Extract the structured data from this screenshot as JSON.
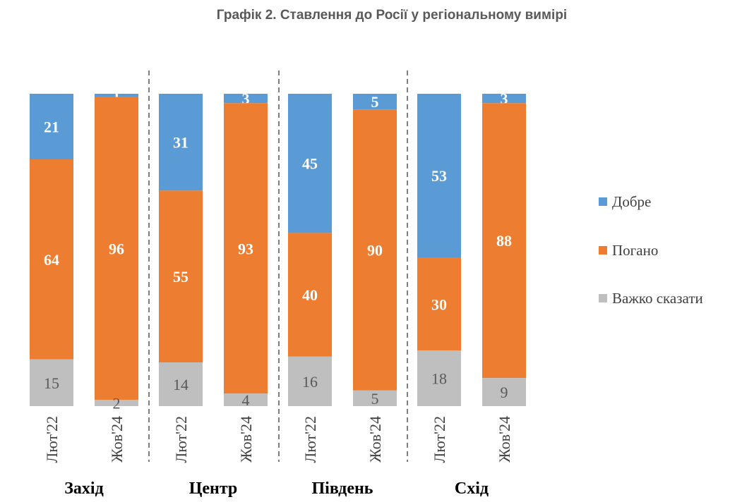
{
  "chart_data": {
    "type": "bar",
    "stacked": true,
    "percent": true,
    "title": "Графік 2. Ставлення до Росії у регіональному вимірі",
    "groups": [
      {
        "region": "Захід",
        "bars": [
          {
            "period": "Лют'22",
            "values": {
              "good": 21,
              "bad": 64,
              "hard": 15
            }
          },
          {
            "period": "Жов'24",
            "values": {
              "good": 1,
              "bad": 96,
              "hard": 2
            }
          }
        ]
      },
      {
        "region": "Центр",
        "bars": [
          {
            "period": "Лют'22",
            "values": {
              "good": 31,
              "bad": 55,
              "hard": 14
            }
          },
          {
            "period": "Жов'24",
            "values": {
              "good": 3,
              "bad": 93,
              "hard": 4
            }
          }
        ]
      },
      {
        "region": "Південь",
        "bars": [
          {
            "period": "Лют'22",
            "values": {
              "good": 45,
              "bad": 40,
              "hard": 16
            }
          },
          {
            "period": "Жов'24",
            "values": {
              "good": 5,
              "bad": 90,
              "hard": 5
            }
          }
        ]
      },
      {
        "region": "Схід",
        "bars": [
          {
            "period": "Лют'22",
            "values": {
              "good": 53,
              "bad": 30,
              "hard": 18
            }
          },
          {
            "period": "Жов'24",
            "values": {
              "good": 3,
              "bad": 88,
              "hard": 9
            }
          }
        ]
      }
    ],
    "series": [
      {
        "key": "good",
        "name": "Добре",
        "color": "#5B9BD5"
      },
      {
        "key": "bad",
        "name": "Погано",
        "color": "#ED7D31"
      },
      {
        "key": "hard",
        "name": "Важко сказати",
        "color": "#BFBFBF"
      }
    ],
    "legend_position": "right",
    "group_separators": "dashed"
  }
}
